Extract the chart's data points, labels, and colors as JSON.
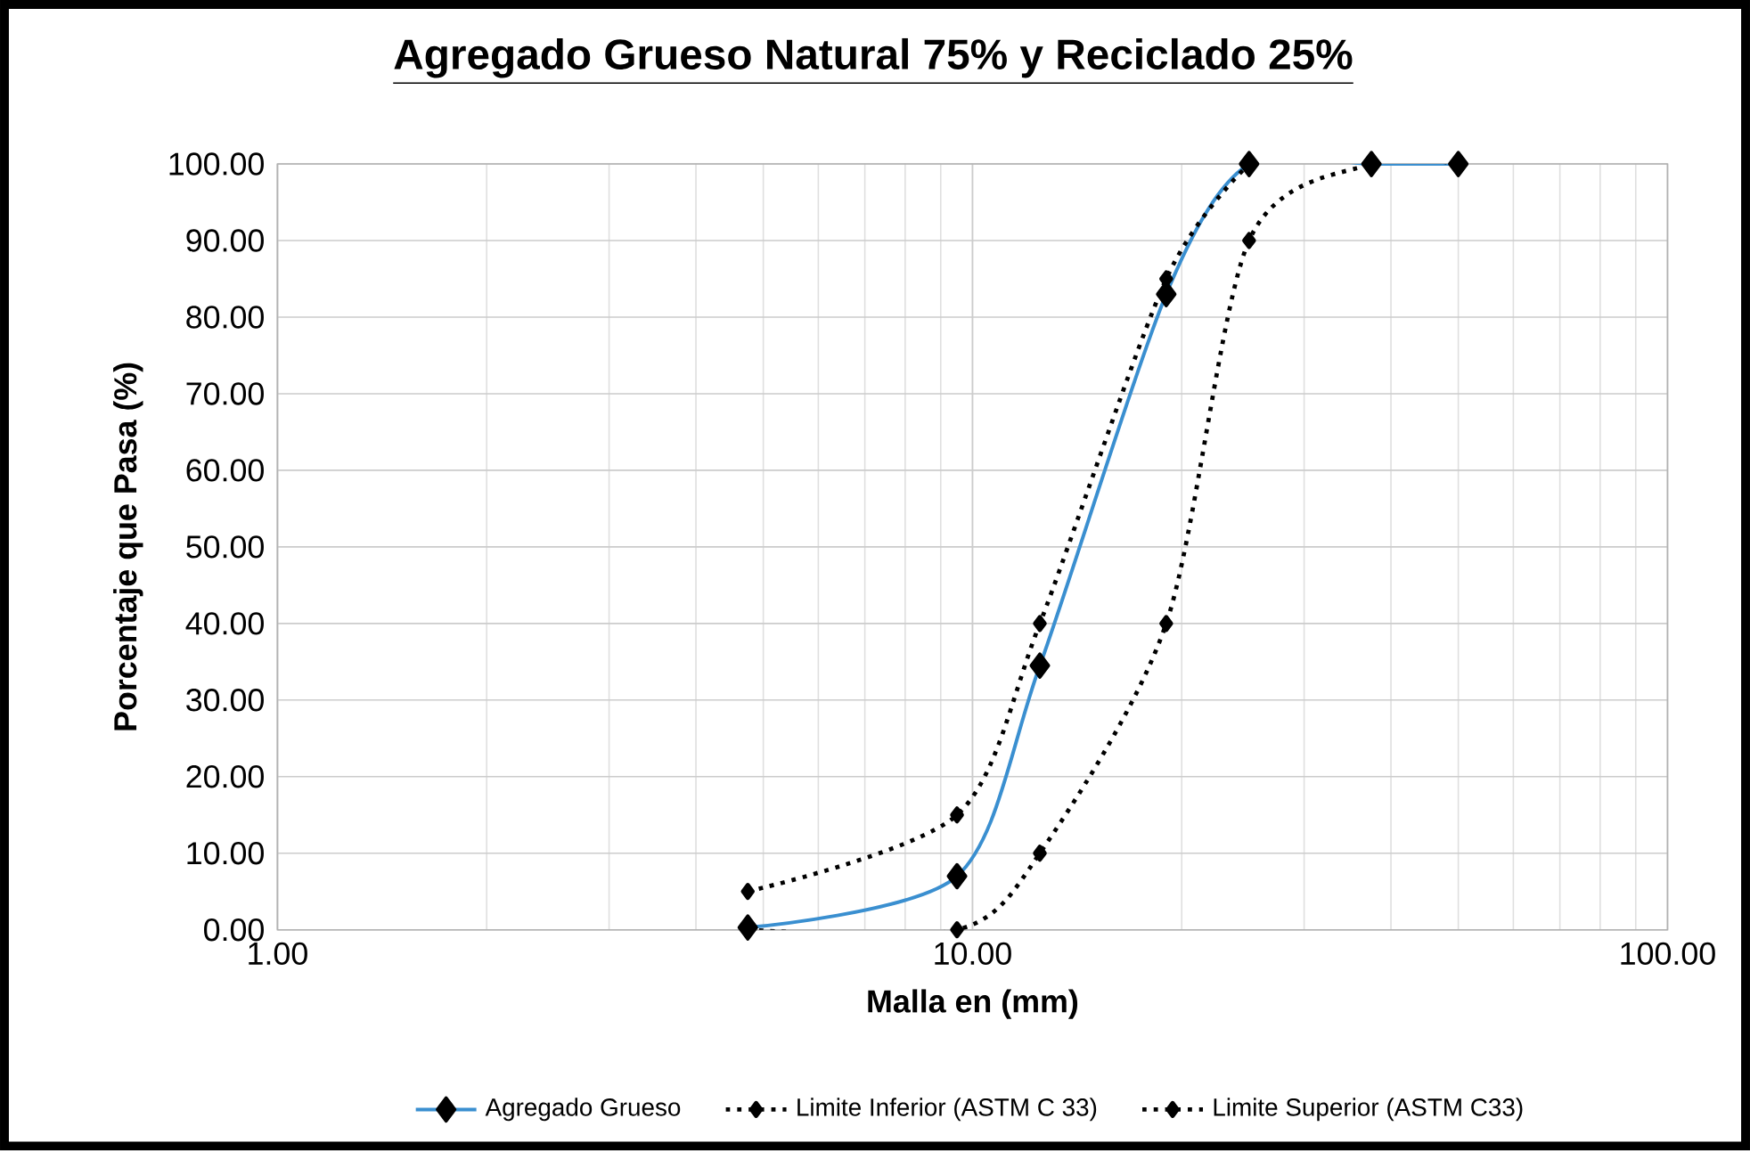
{
  "chart_data": {
    "type": "line",
    "title": "Agregado Grueso Natural 75% y Reciclado 25%",
    "xlabel": "Malla en (mm)",
    "ylabel": "Porcentaje que Pasa (%)",
    "log": "x",
    "xlim": [
      1,
      100
    ],
    "xticks": [
      {
        "value": 1,
        "label": "1.00"
      },
      {
        "value": 10,
        "label": "10.00"
      },
      {
        "value": 100,
        "label": "100.00"
      }
    ],
    "ylim": [
      0,
      100
    ],
    "yticks": [
      {
        "value": 0,
        "label": "0.00"
      },
      {
        "value": 10,
        "label": "10.00"
      },
      {
        "value": 20,
        "label": "20.00"
      },
      {
        "value": 30,
        "label": "30.00"
      },
      {
        "value": 40,
        "label": "40.00"
      },
      {
        "value": 50,
        "label": "50.00"
      },
      {
        "value": 60,
        "label": "60.00"
      },
      {
        "value": 70,
        "label": "70.00"
      },
      {
        "value": 80,
        "label": "80.00"
      },
      {
        "value": 90,
        "label": "90.00"
      },
      {
        "value": 100,
        "label": "100.00"
      }
    ],
    "grid": true,
    "legend": "bottom",
    "marker": "diamond",
    "series": [
      {
        "name": "Agregado Grueso",
        "color": "#3a8fd0",
        "line_style": "solid",
        "x": [
          4.75,
          9.5,
          12.5,
          19,
          25,
          37.5,
          50
        ],
        "values": [
          0.3,
          7,
          34.5,
          83,
          100,
          100,
          100
        ]
      },
      {
        "name": "Limite Inferior (ASTM C 33)",
        "color": "#000000",
        "line_style": "dotted",
        "x": [
          4.75,
          9.5,
          12.5,
          19,
          25
        ],
        "values": [
          5,
          15,
          40,
          85,
          100
        ]
      },
      {
        "name": "Limite Superior (ASTM C33)",
        "color": "#000000",
        "line_style": "dotted",
        "x": [
          4.75,
          9.5,
          12.5,
          19,
          25,
          37.5,
          50
        ],
        "values": [
          0,
          0,
          10,
          40,
          90,
          100,
          100
        ]
      }
    ]
  }
}
